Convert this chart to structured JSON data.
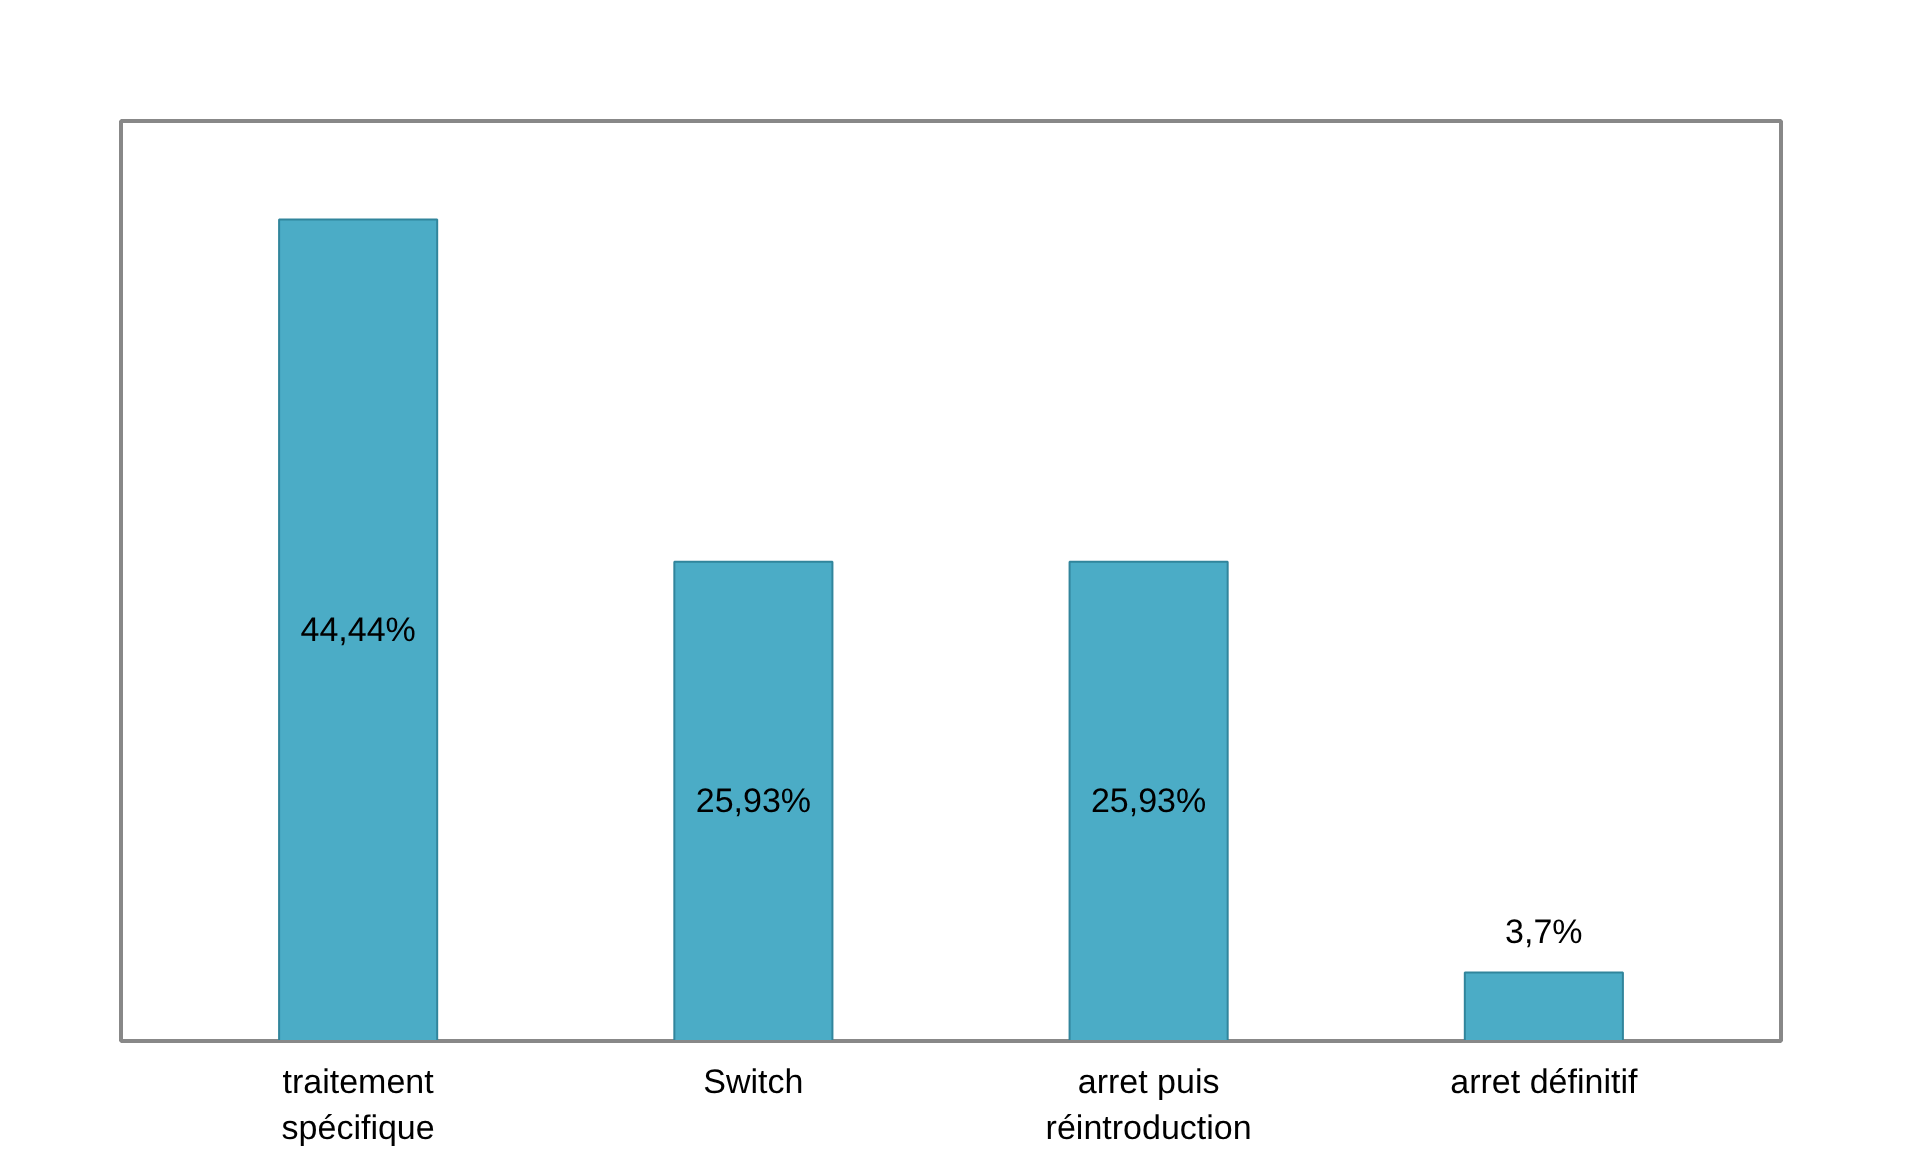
{
  "chart_data": {
    "type": "bar",
    "categories": [
      "traitement spécifique",
      "Switch",
      "arret puis réintroduction",
      "arret définitif"
    ],
    "values": [
      44.44,
      25.93,
      25.93,
      3.7
    ],
    "value_labels": [
      "44,44%",
      "25,93%",
      "25,93%",
      "3,7%"
    ],
    "color": "#4bacc6",
    "grid": false
  }
}
